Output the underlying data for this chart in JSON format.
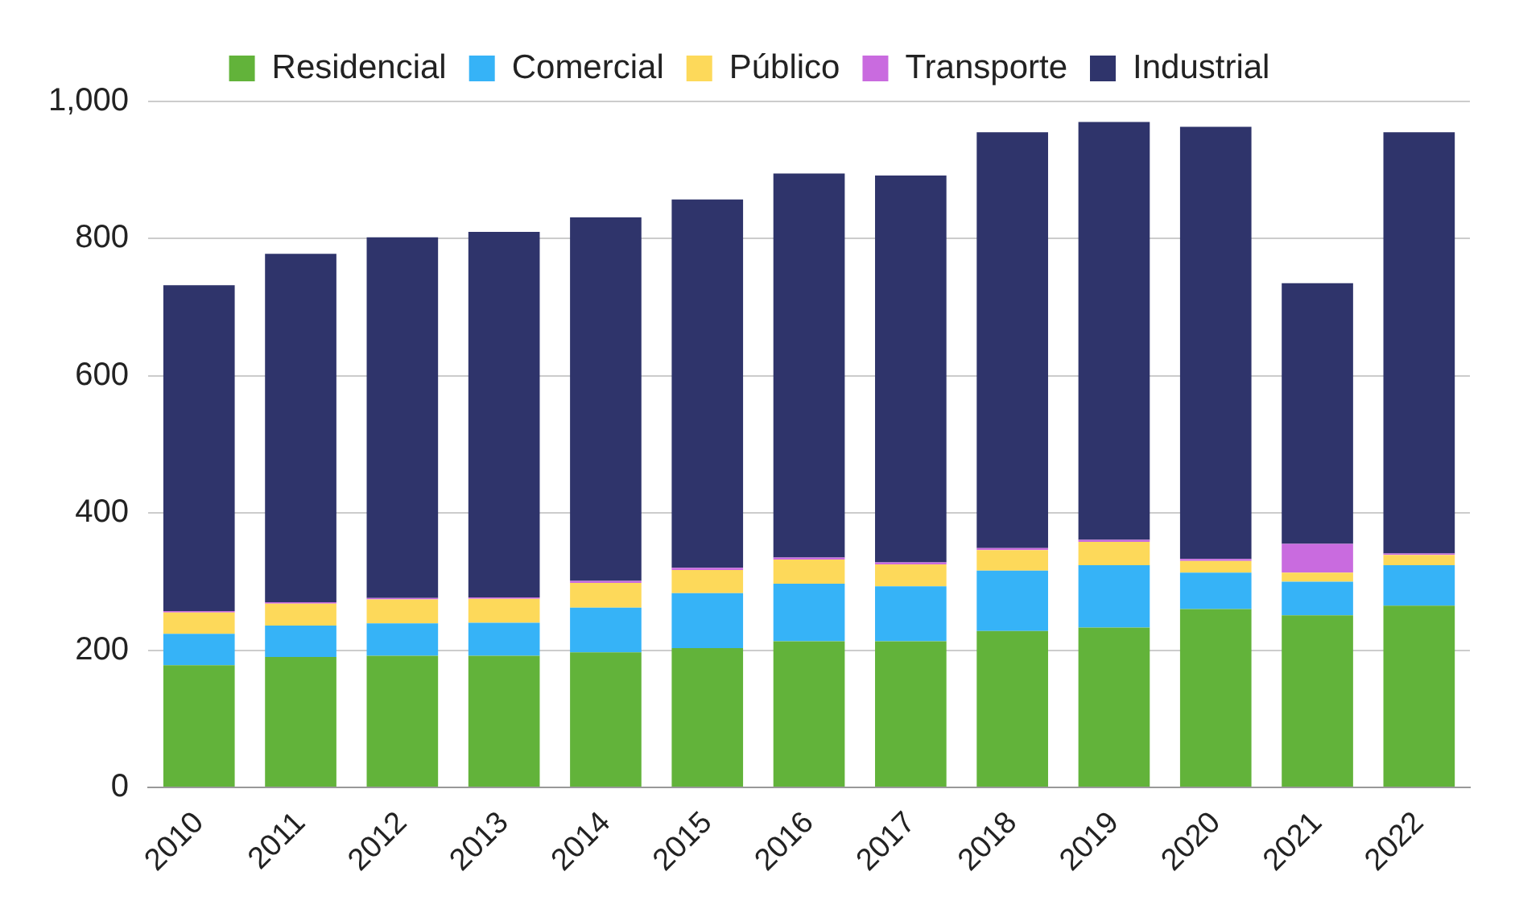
{
  "chart_data": {
    "type": "bar",
    "stacked": true,
    "legend": "top",
    "grid": "y",
    "categories": [
      "2010",
      "2011",
      "2012",
      "2013",
      "2014",
      "2015",
      "2016",
      "2017",
      "2018",
      "2019",
      "2020",
      "2021",
      "2022"
    ],
    "series": [
      {
        "name": "Residencial",
        "color": "#62b33a",
        "values": [
          178,
          190,
          192,
          192,
          197,
          203,
          213,
          213,
          228,
          233,
          260,
          251,
          265
        ]
      },
      {
        "name": "Comercial",
        "color": "#36b3f7",
        "values": [
          46,
          46,
          47,
          48,
          65,
          80,
          84,
          80,
          88,
          91,
          53,
          49,
          59
        ]
      },
      {
        "name": "Público",
        "color": "#fdd95a",
        "values": [
          31,
          32,
          35,
          35,
          36,
          34,
          35,
          32,
          30,
          34,
          17,
          13,
          15
        ]
      },
      {
        "name": "Transporte",
        "color": "#c96bdf",
        "values": [
          2,
          2,
          2,
          2,
          3,
          3,
          3,
          3,
          3,
          3,
          3,
          42,
          2
        ]
      },
      {
        "name": "Industrial",
        "color": "#2f346b",
        "values": [
          475,
          508,
          526,
          533,
          530,
          537,
          560,
          564,
          606,
          609,
          630,
          380,
          614
        ]
      }
    ],
    "ylim": [
      0,
      1000
    ],
    "yticks": [
      0,
      200,
      400,
      600,
      800,
      {
        "value": 1000,
        "label": "1,000"
      }
    ]
  }
}
